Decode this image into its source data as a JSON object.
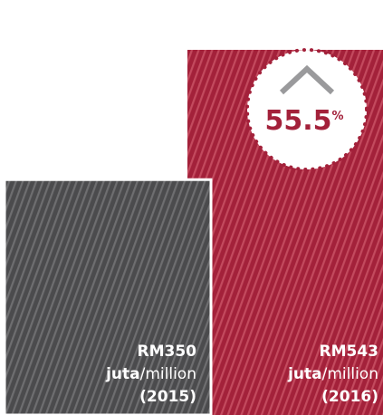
{
  "chart_data": {
    "type": "bar",
    "categories": [
      "(2015)",
      "(2016)"
    ],
    "values": [
      350,
      543
    ],
    "value_labels": [
      "RM350",
      "RM543"
    ],
    "unit": [
      "juta",
      "/",
      "million"
    ],
    "colors": [
      "#4b4b4d",
      "#a3213a"
    ],
    "annotation": "55.5",
    "annotation_unit": "%"
  }
}
